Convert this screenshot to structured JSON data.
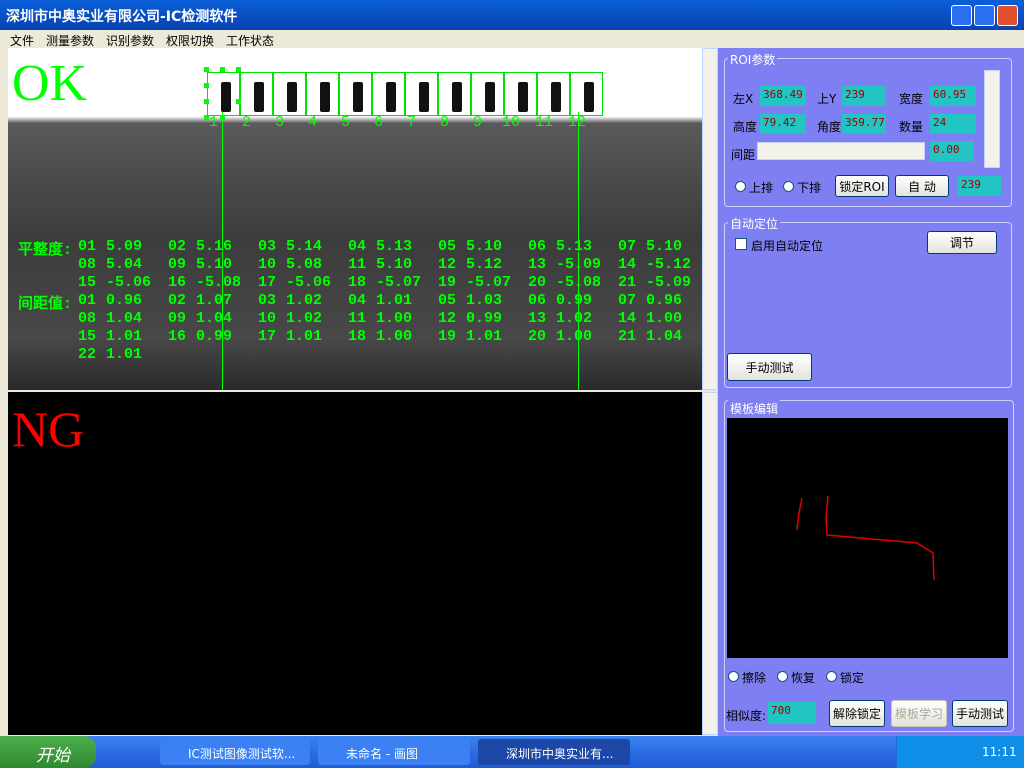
{
  "window": {
    "title": "深圳市中奥实业有限公司-IC检测软件"
  },
  "menu": [
    "文件",
    "测量参数",
    "识别参数",
    "权限切换",
    "工作状态"
  ],
  "ok_panel": {
    "status": "OK",
    "pins": [
      "1",
      "2",
      "3",
      "4",
      "5",
      "6",
      "7",
      "8",
      "9",
      "10",
      "11",
      "12"
    ],
    "flatness_label": "平整度:",
    "flatness": [
      [
        "01",
        "5.09"
      ],
      [
        "02",
        "5.16"
      ],
      [
        "03",
        "5.14"
      ],
      [
        "04",
        "5.13"
      ],
      [
        "05",
        "5.10"
      ],
      [
        "06",
        "5.13"
      ],
      [
        "07",
        "5.10"
      ],
      [
        "08",
        "5.04"
      ],
      [
        "09",
        "5.10"
      ],
      [
        "10",
        "5.08"
      ],
      [
        "11",
        "5.10"
      ],
      [
        "12",
        "5.12"
      ],
      [
        "13",
        "-5.09"
      ],
      [
        "14",
        "-5.12"
      ],
      [
        "15",
        "-5.06"
      ],
      [
        "16",
        "-5.08"
      ],
      [
        "17",
        "-5.06"
      ],
      [
        "18",
        "-5.07"
      ],
      [
        "19",
        "-5.07"
      ],
      [
        "20",
        "-5.08"
      ],
      [
        "21",
        "-5.09"
      ]
    ],
    "spacing_label": "间距值:",
    "spacing": [
      [
        "01",
        "0.96"
      ],
      [
        "02",
        "1.07"
      ],
      [
        "03",
        "1.02"
      ],
      [
        "04",
        "1.01"
      ],
      [
        "05",
        "1.03"
      ],
      [
        "06",
        "0.99"
      ],
      [
        "07",
        "0.96"
      ],
      [
        "08",
        "1.04"
      ],
      [
        "09",
        "1.04"
      ],
      [
        "10",
        "1.02"
      ],
      [
        "11",
        "1.00"
      ],
      [
        "12",
        "0.99"
      ],
      [
        "13",
        "1.02"
      ],
      [
        "14",
        "1.00"
      ],
      [
        "15",
        "1.01"
      ],
      [
        "16",
        "0.99"
      ],
      [
        "17",
        "1.01"
      ],
      [
        "18",
        "1.00"
      ],
      [
        "19",
        "1.01"
      ],
      [
        "20",
        "1.00"
      ],
      [
        "21",
        "1.04"
      ],
      [
        "22",
        "1.01"
      ]
    ]
  },
  "ng_panel": {
    "status": "NG"
  },
  "roi": {
    "title": "ROI参数",
    "fields": [
      [
        "左X",
        "368.49"
      ],
      [
        "上Y",
        "239"
      ],
      [
        "宽度",
        "60.95"
      ],
      [
        "高度",
        "79.42"
      ],
      [
        "角度",
        "359.77"
      ],
      [
        "数量",
        "24"
      ]
    ],
    "spacing_label": "间距",
    "spacing_value": "0.00",
    "radios": [
      "上排",
      "下排"
    ],
    "buttons": [
      "锁定ROI",
      "自 动"
    ],
    "extra_value": "239"
  },
  "auto": {
    "title": "自动定位",
    "checkbox": "启用自动定位",
    "adjust": "调节",
    "manual_test": "手动测试"
  },
  "template": {
    "title": "模板编辑",
    "radios": [
      "擦除",
      "恢复",
      "锁定"
    ],
    "similarity_label": "相似度:",
    "similarity": "700",
    "buttons": [
      "解除锁定",
      "模板学习",
      "手动测试"
    ]
  },
  "taskbar": {
    "start": "开始",
    "tasks": [
      "IC测试图像测试软...",
      "未命名 - 画图",
      "深圳市中奥实业有..."
    ],
    "clock": "11:11"
  }
}
